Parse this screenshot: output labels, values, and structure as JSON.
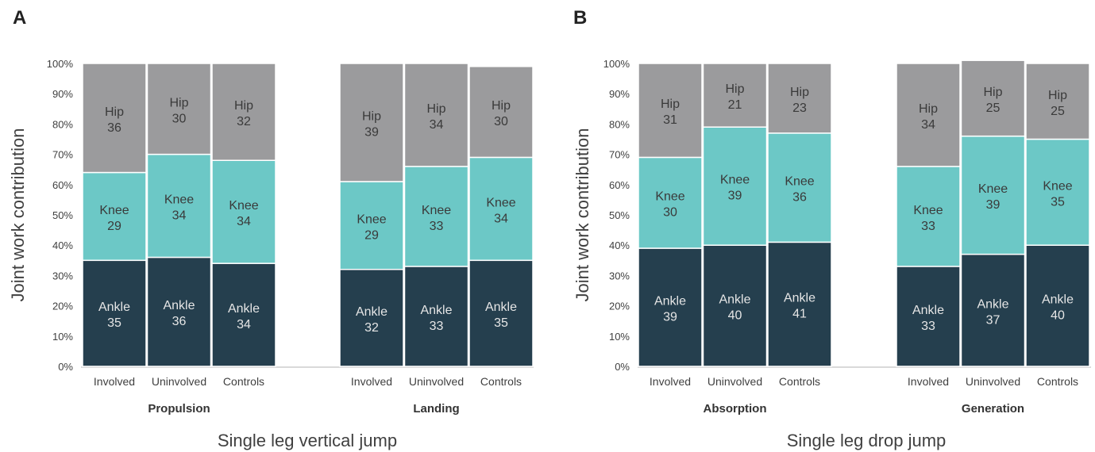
{
  "colors": {
    "Ankle": "#253f4e",
    "Knee": "#6cc8c6",
    "Hip": "#9b9b9d",
    "axis": "#d9d9d9",
    "ankle_text": "#e6e6e6",
    "dark_text": "#3a3a3a"
  },
  "y_ticks": [
    "0%",
    "10%",
    "20%",
    "30%",
    "40%",
    "50%",
    "60%",
    "70%",
    "80%",
    "90%",
    "100%"
  ],
  "chart_data": [
    {
      "type": "bar",
      "stacked": true,
      "panel": "A",
      "ylabel": "Joint work contribution",
      "xlabel": "Single leg vertical jump",
      "ylim": [
        0,
        100
      ],
      "groups": [
        {
          "name": "Propulsion",
          "categories": [
            "Involved",
            "Uninvolved",
            "Controls"
          ],
          "series": [
            {
              "name": "Ankle",
              "values": [
                35,
                36,
                34
              ]
            },
            {
              "name": "Knee",
              "values": [
                29,
                34,
                34
              ]
            },
            {
              "name": "Hip",
              "values": [
                36,
                30,
                32
              ]
            }
          ]
        },
        {
          "name": "Landing",
          "categories": [
            "Involved",
            "Uninvolved",
            "Controls"
          ],
          "series": [
            {
              "name": "Ankle",
              "values": [
                32,
                33,
                35
              ]
            },
            {
              "name": "Knee",
              "values": [
                29,
                33,
                34
              ]
            },
            {
              "name": "Hip",
              "values": [
                39,
                34,
                30
              ]
            }
          ]
        }
      ]
    },
    {
      "type": "bar",
      "stacked": true,
      "panel": "B",
      "ylabel": "Joint work contribution",
      "xlabel": "Single leg drop jump",
      "ylim": [
        0,
        100
      ],
      "groups": [
        {
          "name": "Absorption",
          "categories": [
            "Involved",
            "Uninvolved",
            "Controls"
          ],
          "series": [
            {
              "name": "Ankle",
              "values": [
                39,
                40,
                41
              ]
            },
            {
              "name": "Knee",
              "values": [
                30,
                39,
                36
              ]
            },
            {
              "name": "Hip",
              "values": [
                31,
                21,
                23
              ]
            }
          ]
        },
        {
          "name": "Generation",
          "categories": [
            "Involved",
            "Uninvolved",
            "Controls"
          ],
          "series": [
            {
              "name": "Ankle",
              "values": [
                33,
                37,
                40
              ]
            },
            {
              "name": "Knee",
              "values": [
                33,
                39,
                35
              ]
            },
            {
              "name": "Hip",
              "values": [
                34,
                25,
                25
              ]
            }
          ]
        }
      ]
    }
  ]
}
